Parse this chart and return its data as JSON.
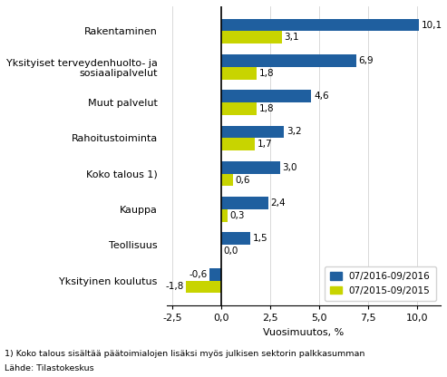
{
  "categories": [
    "Rakentaminen",
    "Yksityiset terveydenhuolto- ja\nsosiaalipalvelut",
    "Muut palvelut",
    "Rahoitustoiminta",
    "Koko talous 1)",
    "Kauppa",
    "Teollisuus",
    "Yksityinen koulutus"
  ],
  "values_2016": [
    10.1,
    6.9,
    4.6,
    3.2,
    3.0,
    2.4,
    1.5,
    -0.6
  ],
  "values_2015": [
    3.1,
    1.8,
    1.8,
    1.7,
    0.6,
    0.3,
    0.0,
    -1.8
  ],
  "color_2016": "#1F5F9F",
  "color_2015": "#C8D400",
  "xlabel": "Vuosimuutos, %",
  "legend_2016": "07/2016-09/2016",
  "legend_2015": "07/2015-09/2015",
  "xlim": [
    -2.8,
    11.2
  ],
  "xticks": [
    -2.5,
    0.0,
    2.5,
    5.0,
    7.5,
    10.0
  ],
  "xtick_labels": [
    "-2,5",
    "0,0",
    "2,5",
    "5,0",
    "7,5",
    "10,0"
  ],
  "footnote1": "1) Koko talous sisältää päätoimialojen lisäksi myös julkisen sektorin palkkasumman",
  "footnote2": "Lähde: Tilastokeskus"
}
